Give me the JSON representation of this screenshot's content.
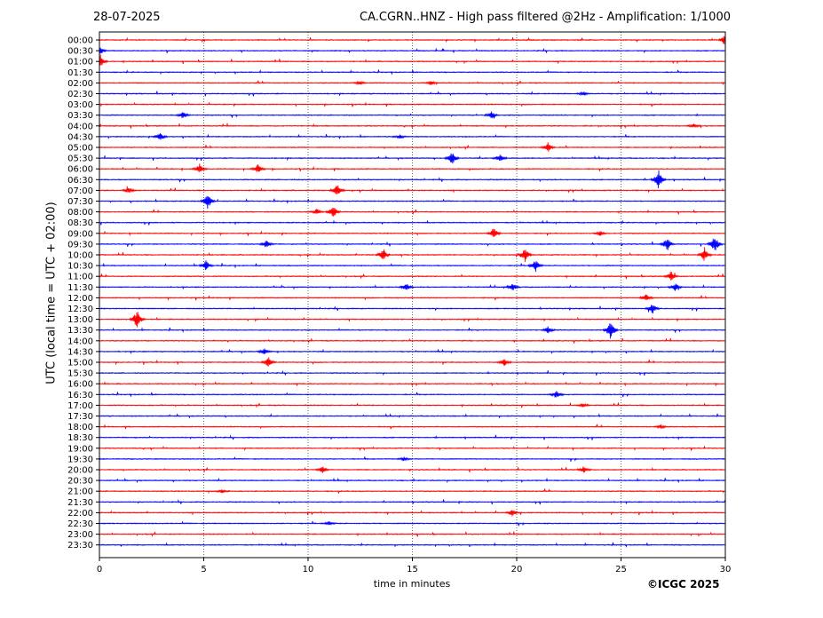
{
  "header": {
    "date": "28-07-2025",
    "title": "CA.CGRN..HNZ - High pass filtered @2Hz - Amplification: 1/1000"
  },
  "footer": {
    "copyright": "©ICGC 2025"
  },
  "chart_data": {
    "type": "line",
    "xlabel": "time in minutes",
    "ylabel": "UTC (local time = UTC + 02:00)",
    "xlim": [
      0,
      30
    ],
    "x_ticks": [
      0,
      5,
      10,
      15,
      20,
      25,
      30
    ],
    "grid": "vertical dotted lines at x ticks",
    "row_colors": [
      "#ff0000",
      "#0000ff"
    ],
    "traces": [
      "00:00",
      "00:30",
      "01:00",
      "01:30",
      "02:00",
      "02:30",
      "03:00",
      "03:30",
      "04:00",
      "04:30",
      "05:00",
      "05:30",
      "06:00",
      "06:30",
      "07:00",
      "07:30",
      "08:00",
      "08:30",
      "09:00",
      "09:30",
      "10:00",
      "10:30",
      "11:00",
      "11:30",
      "12:00",
      "12:30",
      "13:00",
      "13:30",
      "14:00",
      "14:30",
      "15:00",
      "15:30",
      "16:00",
      "16:30",
      "17:00",
      "17:30",
      "18:00",
      "18:30",
      "19:00",
      "19:30",
      "20:00",
      "20:30",
      "21:00",
      "21:30",
      "22:00",
      "22:30",
      "23:00",
      "23:30"
    ],
    "events": [
      {
        "trace": "00:00",
        "minute": 30.0,
        "amp": 1.0
      },
      {
        "trace": "00:30",
        "minute": 0.0,
        "amp": 0.8
      },
      {
        "trace": "01:00",
        "minute": 0.05,
        "amp": 1.0
      },
      {
        "trace": "02:00",
        "minute": 12.5,
        "amp": 0.3
      },
      {
        "trace": "02:00",
        "minute": 15.9,
        "amp": 0.3
      },
      {
        "trace": "02:30",
        "minute": 23.2,
        "amp": 0.3
      },
      {
        "trace": "03:30",
        "minute": 4.0,
        "amp": 0.5
      },
      {
        "trace": "03:30",
        "minute": 18.8,
        "amp": 0.5
      },
      {
        "trace": "04:00",
        "minute": 28.5,
        "amp": 0.3
      },
      {
        "trace": "04:30",
        "minute": 2.9,
        "amp": 0.6
      },
      {
        "trace": "04:30",
        "minute": 14.4,
        "amp": 0.3
      },
      {
        "trace": "05:00",
        "minute": 21.5,
        "amp": 0.8
      },
      {
        "trace": "05:30",
        "minute": 16.9,
        "amp": 1.0
      },
      {
        "trace": "05:30",
        "minute": 19.2,
        "amp": 0.6
      },
      {
        "trace": "06:00",
        "minute": 4.8,
        "amp": 0.7
      },
      {
        "trace": "06:00",
        "minute": 7.6,
        "amp": 0.7
      },
      {
        "trace": "06:30",
        "minute": 26.8,
        "amp": 1.5
      },
      {
        "trace": "07:00",
        "minute": 11.4,
        "amp": 1.0
      },
      {
        "trace": "07:00",
        "minute": 1.4,
        "amp": 0.5
      },
      {
        "trace": "07:30",
        "minute": 5.2,
        "amp": 1.2
      },
      {
        "trace": "08:00",
        "minute": 10.4,
        "amp": 0.5
      },
      {
        "trace": "08:00",
        "minute": 11.2,
        "amp": 1.0
      },
      {
        "trace": "09:00",
        "minute": 18.9,
        "amp": 0.9
      },
      {
        "trace": "09:00",
        "minute": 24.0,
        "amp": 0.4
      },
      {
        "trace": "09:30",
        "minute": 8.0,
        "amp": 0.6
      },
      {
        "trace": "09:30",
        "minute": 27.2,
        "amp": 1.0
      },
      {
        "trace": "09:30",
        "minute": 29.5,
        "amp": 1.4
      },
      {
        "trace": "10:00",
        "minute": 13.6,
        "amp": 1.0
      },
      {
        "trace": "10:00",
        "minute": 20.4,
        "amp": 1.0
      },
      {
        "trace": "10:00",
        "minute": 29.0,
        "amp": 1.0
      },
      {
        "trace": "10:30",
        "minute": 5.1,
        "amp": 0.8
      },
      {
        "trace": "10:30",
        "minute": 20.9,
        "amp": 0.9
      },
      {
        "trace": "11:00",
        "minute": 27.4,
        "amp": 0.8
      },
      {
        "trace": "11:30",
        "minute": 14.7,
        "amp": 0.6
      },
      {
        "trace": "11:30",
        "minute": 19.8,
        "amp": 0.6
      },
      {
        "trace": "11:30",
        "minute": 27.6,
        "amp": 0.6
      },
      {
        "trace": "12:00",
        "minute": 26.2,
        "amp": 0.6
      },
      {
        "trace": "12:30",
        "minute": 26.5,
        "amp": 0.8
      },
      {
        "trace": "13:00",
        "minute": 1.8,
        "amp": 1.5
      },
      {
        "trace": "13:30",
        "minute": 24.5,
        "amp": 1.5
      },
      {
        "trace": "13:30",
        "minute": 21.5,
        "amp": 0.5
      },
      {
        "trace": "14:30",
        "minute": 7.9,
        "amp": 0.5
      },
      {
        "trace": "15:00",
        "minute": 8.1,
        "amp": 0.8
      },
      {
        "trace": "15:00",
        "minute": 19.4,
        "amp": 0.6
      },
      {
        "trace": "16:30",
        "minute": 21.9,
        "amp": 0.6
      },
      {
        "trace": "17:00",
        "minute": 23.2,
        "amp": 0.3
      },
      {
        "trace": "18:00",
        "minute": 26.9,
        "amp": 0.3
      },
      {
        "trace": "19:30",
        "minute": 14.6,
        "amp": 0.3
      },
      {
        "trace": "20:00",
        "minute": 10.7,
        "amp": 0.5
      },
      {
        "trace": "20:00",
        "minute": 23.2,
        "amp": 0.5
      },
      {
        "trace": "21:00",
        "minute": 5.9,
        "amp": 0.3
      },
      {
        "trace": "22:00",
        "minute": 19.8,
        "amp": 0.5
      },
      {
        "trace": "22:30",
        "minute": 11.0,
        "amp": 0.3
      }
    ]
  }
}
